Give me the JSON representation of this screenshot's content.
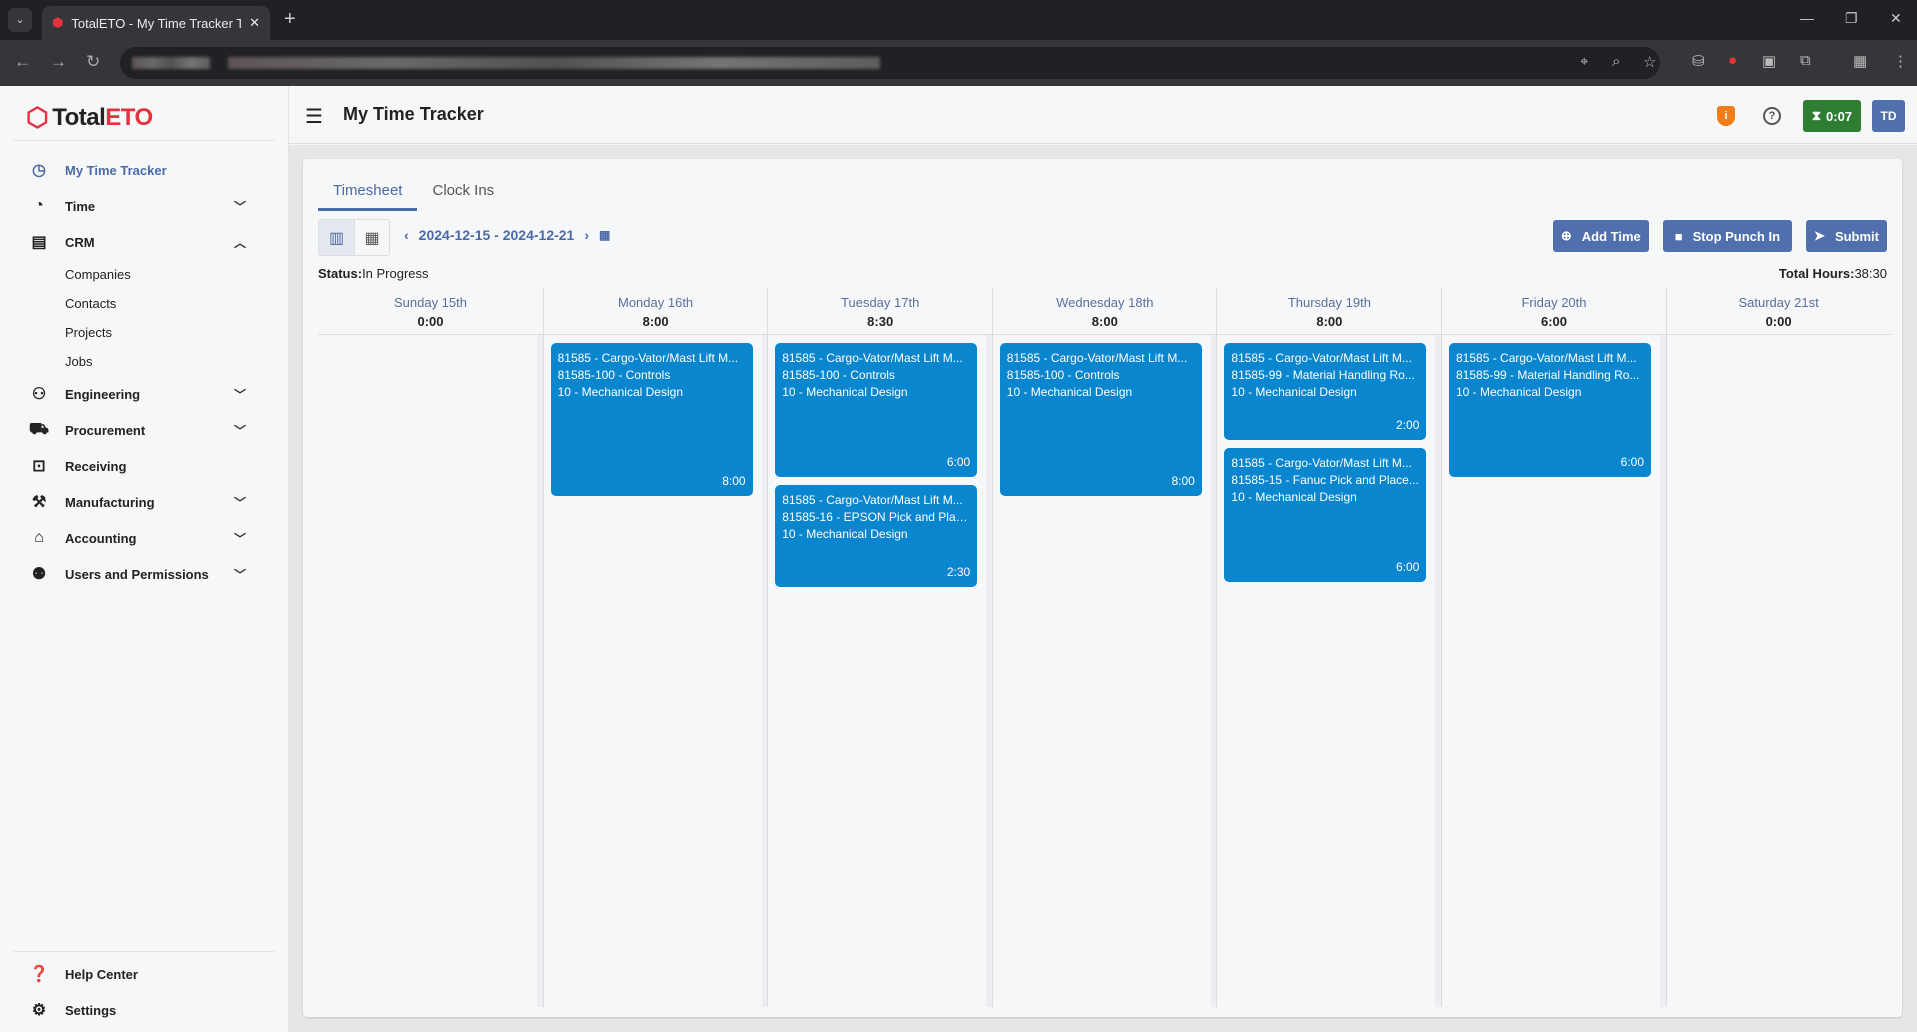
{
  "browser": {
    "tab_title": "TotalETO - My Time Tracker Timesheet",
    "new_tab": "+",
    "close": "✕"
  },
  "app": {
    "logo_a": "Total",
    "logo_b": "ETO",
    "page_title": "My Time Tracker",
    "timer": "0:07",
    "avatar": "TD"
  },
  "sidebar": {
    "items": [
      {
        "label": "My Time Tracker",
        "icon": "clock-icon",
        "active": true
      },
      {
        "label": "Time",
        "icon": "clock-plus-icon",
        "chevron": "down"
      },
      {
        "label": "CRM",
        "icon": "building-users-icon",
        "chevron": "up",
        "children": [
          "Companies",
          "Contacts",
          "Projects",
          "Jobs"
        ]
      },
      {
        "label": "Engineering",
        "icon": "engineer-icon",
        "chevron": "down"
      },
      {
        "label": "Procurement",
        "icon": "cart-icon",
        "chevron": "down"
      },
      {
        "label": "Receiving",
        "icon": "inbox-icon"
      },
      {
        "label": "Manufacturing",
        "icon": "robot-arm-icon",
        "chevron": "down"
      },
      {
        "label": "Accounting",
        "icon": "bank-icon",
        "chevron": "down"
      },
      {
        "label": "Users and Permissions",
        "icon": "users-icon",
        "chevron": "down"
      }
    ],
    "bottom": [
      {
        "label": "Help Center",
        "icon": "help-box-icon"
      },
      {
        "label": "Settings",
        "icon": "gear-icon"
      }
    ]
  },
  "tabs": [
    {
      "label": "Timesheet",
      "selected": true
    },
    {
      "label": "Clock Ins"
    }
  ],
  "toolbar": {
    "range": "2024-12-15 - 2024-12-21",
    "add_time": "Add Time",
    "stop_punch": "Stop Punch In",
    "submit": "Submit"
  },
  "status": {
    "label": "Status:",
    "value": "In Progress"
  },
  "total": {
    "label": "Total Hours:",
    "value": "38:30"
  },
  "days": [
    {
      "name": "Sunday 15th",
      "total": "0:00",
      "entries": []
    },
    {
      "name": "Monday 16th",
      "total": "8:00",
      "entries": [
        {
          "project": "81585 - Cargo-Vator/Mast Lift M...",
          "job": "81585-100 - Controls",
          "task": "10 - Mechanical Design",
          "duration": "8:00",
          "hours": 8
        }
      ]
    },
    {
      "name": "Tuesday 17th",
      "total": "8:30",
      "entries": [
        {
          "project": "81585 - Cargo-Vator/Mast Lift M...",
          "job": "81585-100 - Controls",
          "task": "10 - Mechanical Design",
          "duration": "6:00",
          "hours": 6
        },
        {
          "project": "81585 - Cargo-Vator/Mast Lift M...",
          "job": "81585-16 - EPSON Pick and Plac...",
          "task": "10 - Mechanical Design",
          "duration": "2:30",
          "hours": 2.5
        }
      ]
    },
    {
      "name": "Wednesday 18th",
      "total": "8:00",
      "entries": [
        {
          "project": "81585 - Cargo-Vator/Mast Lift M...",
          "job": "81585-100 - Controls",
          "task": "10 - Mechanical Design",
          "duration": "8:00",
          "hours": 8
        }
      ]
    },
    {
      "name": "Thursday 19th",
      "total": "8:00",
      "entries": [
        {
          "project": "81585 - Cargo-Vator/Mast Lift M...",
          "job": "81585-99 - Material Handling Ro...",
          "task": "10 - Mechanical Design",
          "duration": "2:00",
          "hours": 2
        },
        {
          "project": "81585 - Cargo-Vator/Mast Lift M...",
          "job": "81585-15 - Fanuc Pick and Place...",
          "task": "10 - Mechanical Design",
          "duration": "6:00",
          "hours": 6
        }
      ]
    },
    {
      "name": "Friday 20th",
      "total": "6:00",
      "entries": [
        {
          "project": "81585 - Cargo-Vator/Mast Lift M...",
          "job": "81585-99 - Material Handling Ro...",
          "task": "10 - Mechanical Design",
          "duration": "6:00",
          "hours": 6
        }
      ]
    },
    {
      "name": "Saturday 21st",
      "total": "0:00",
      "entries": []
    }
  ],
  "colors": {
    "accent": "#4f6fad",
    "event": "#0a86cf",
    "timer": "#2e7d32",
    "brand": "#e5323f"
  }
}
